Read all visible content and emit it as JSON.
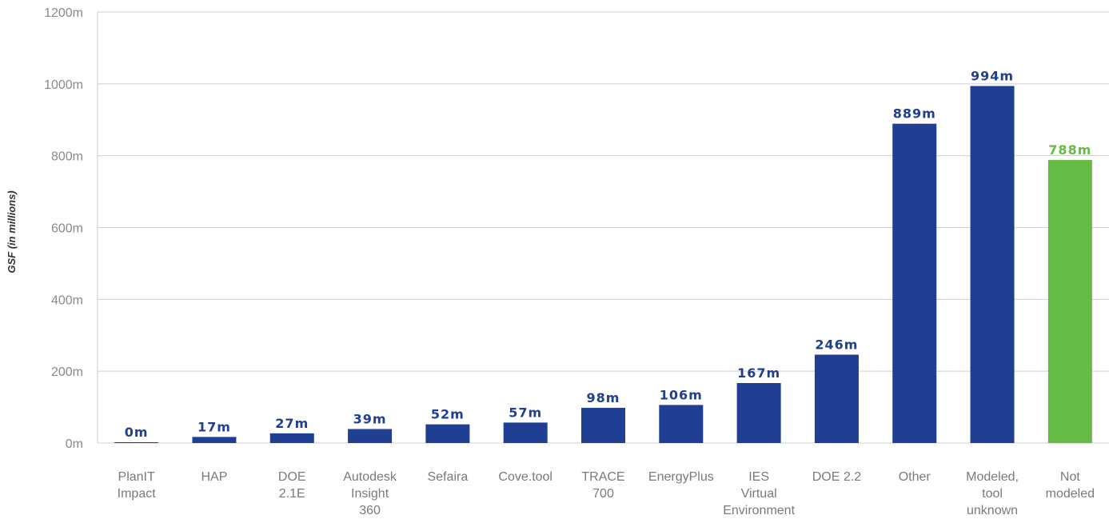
{
  "chart_data": {
    "type": "bar",
    "title": "",
    "xlabel": "",
    "ylabel": "GSF (in millions)",
    "ylim": [
      0,
      1200
    ],
    "yticks": [
      0,
      200,
      400,
      600,
      800,
      1000,
      1200
    ],
    "ytick_labels": [
      "0m",
      "200m",
      "400m",
      "600m",
      "800m",
      "1000m",
      "1200m"
    ],
    "grid": true,
    "categories": [
      [
        "PlanIT",
        "Impact"
      ],
      [
        "HAP"
      ],
      [
        "DOE",
        "2.1E"
      ],
      [
        "Autodesk",
        "Insight",
        "360"
      ],
      [
        "Sefaira"
      ],
      [
        "Cove.tool"
      ],
      [
        "TRACE",
        "700"
      ],
      [
        "EnergyPlus"
      ],
      [
        "IES",
        "Virtual",
        "Environment"
      ],
      [
        "DOE 2.2"
      ],
      [
        "Other"
      ],
      [
        "Modeled,",
        "tool",
        "unknown"
      ],
      [
        "Not",
        "modeled"
      ]
    ],
    "values": [
      0,
      17,
      27,
      39,
      52,
      57,
      98,
      106,
      167,
      246,
      889,
      994,
      788
    ],
    "value_labels": [
      "0m",
      "17m",
      "27m",
      "39m",
      "52m",
      "57m",
      "98m",
      "106m",
      "167m",
      "246m",
      "889m",
      "994m",
      "788m"
    ],
    "bar_colors": [
      "#213f92",
      "#213f92",
      "#213f92",
      "#213f92",
      "#213f92",
      "#213f92",
      "#213f92",
      "#213f92",
      "#213f92",
      "#213f92",
      "#213f92",
      "#213f92",
      "#66bb47"
    ],
    "colors": {
      "primary": "#213f92",
      "highlight": "#66bb47",
      "grid": "#cfcfcf",
      "tick_text": "#8a8a8a"
    }
  }
}
